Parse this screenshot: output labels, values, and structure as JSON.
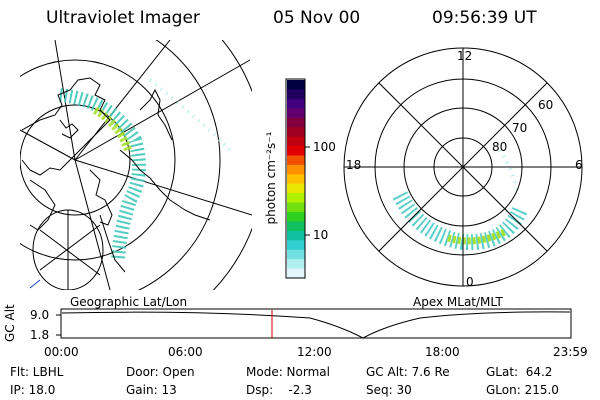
{
  "header": {
    "title": "Ultraviolet Imager",
    "date": "05 Nov 00",
    "time": "09:56:39 UT"
  },
  "geo_panel": {
    "caption": "Geographic Lat/Lon"
  },
  "apex_panel": {
    "caption": "Apex MLat/MLT",
    "hour_labels": {
      "h12": "12",
      "h18": "18",
      "h6": "6",
      "h0": "0"
    },
    "lat_labels": {
      "l60": "60",
      "l70": "70",
      "l80": "80"
    }
  },
  "colorbar": {
    "label_html": "photon cm⁻²s⁻¹",
    "tick_labels": {
      "t100": "100",
      "t10": "10"
    },
    "colors": [
      "#000040",
      "#200060",
      "#400080",
      "#600070",
      "#800040",
      "#a00020",
      "#c00010",
      "#e00000",
      "#f05000",
      "#ff9000",
      "#ffc000",
      "#e8e800",
      "#b0f000",
      "#70e010",
      "#30d020",
      "#10c060",
      "#10c0a0",
      "#30d0d0",
      "#70e0e0",
      "#b0eef0",
      "#e0f6f8"
    ]
  },
  "timeline": {
    "y_label": "GC Alt",
    "y_ticks": {
      "top": "9.0",
      "bottom": "1.8"
    },
    "x_ticks": [
      "00:00",
      "06:00",
      "12:00",
      "18:00",
      "23:59"
    ],
    "current_time_marker": "09:56"
  },
  "info": {
    "flt": "Flt: LBHL",
    "ip": "IP: 18.0",
    "door": "Door: Open",
    "gain": "Gain: 13",
    "mode": "Mode: Normal",
    "dsp": "Dsp:    -2.3",
    "gcalt": "GC Alt: 7.6 Re",
    "seq": "Seq: 30",
    "glat": "GLat:  64.2",
    "glon": "GLon: 215.0"
  },
  "colors": {
    "marker": "#cc0000",
    "aurora": "#30c8b0",
    "aurora_bright": "#a8e030"
  }
}
